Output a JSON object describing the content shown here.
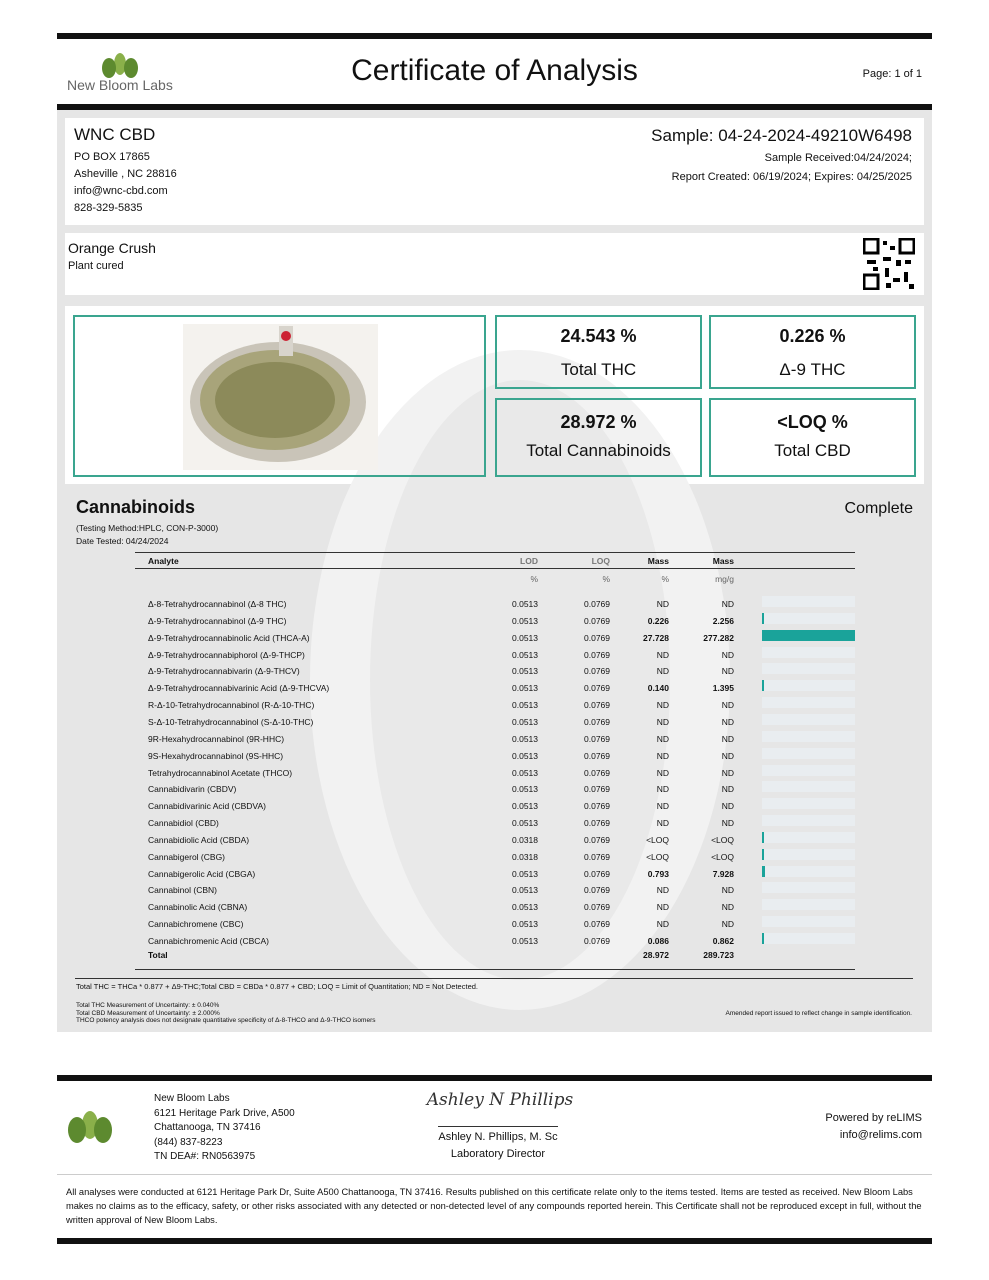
{
  "header": {
    "lab_name": "New Bloom Labs",
    "title": "Certificate of Analysis",
    "page": "Page: 1 of 1"
  },
  "client": {
    "name": "WNC CBD",
    "lines": [
      "PO BOX 17865",
      "Asheville , NC 28816",
      "info@wnc-cbd.com",
      "828-329-5835"
    ]
  },
  "sample": {
    "id": "Sample: 04-24-2024-49210W6498",
    "received": "Sample Received:04/24/2024;",
    "report": "Report Created: 06/19/2024; Expires: 04/25/2025"
  },
  "product": {
    "name": "Orange Crush",
    "type": "Plant cured"
  },
  "summary": [
    {
      "value": "24.543 %",
      "label": "Total THC"
    },
    {
      "value": "0.226 %",
      "label": "Δ-9 THC"
    },
    {
      "value": "28.972 %",
      "label": "Total Cannabinoids"
    },
    {
      "value": "<LOQ %",
      "label": "Total CBD"
    }
  ],
  "cannabinoids": {
    "title": "Cannabinoids",
    "status": "Complete",
    "method": "(Testing Method:HPLC, CON-P-3000)",
    "date": "Date Tested: 04/24/2024",
    "columns": [
      "Analyte",
      "LOD",
      "LOQ",
      "Mass",
      "Mass"
    ],
    "units": [
      "%",
      "%",
      "%",
      "mg/g"
    ],
    "rows": [
      [
        "Δ-8-Tetrahydrocannabinol (Δ-8 THC)",
        "0.0513",
        "0.0769",
        "ND",
        "ND"
      ],
      [
        "Δ-9-Tetrahydrocannabinol (Δ-9 THC)",
        "0.0513",
        "0.0769",
        "0.226",
        "2.256"
      ],
      [
        "Δ-9-Tetrahydrocannabinolic Acid (THCA-A)",
        "0.0513",
        "0.0769",
        "27.728",
        "277.282"
      ],
      [
        "Δ-9-Tetrahydrocannabiphorol (Δ-9-THCP)",
        "0.0513",
        "0.0769",
        "ND",
        "ND"
      ],
      [
        "Δ-9-Tetrahydrocannabivarin (Δ-9-THCV)",
        "0.0513",
        "0.0769",
        "ND",
        "ND"
      ],
      [
        "Δ-9-Tetrahydrocannabivarinic Acid (Δ-9-THCVA)",
        "0.0513",
        "0.0769",
        "0.140",
        "1.395"
      ],
      [
        "R-Δ-10-Tetrahydrocannabinol (R-Δ-10-THC)",
        "0.0513",
        "0.0769",
        "ND",
        "ND"
      ],
      [
        "S-Δ-10-Tetrahydrocannabinol (S-Δ-10-THC)",
        "0.0513",
        "0.0769",
        "ND",
        "ND"
      ],
      [
        "9R-Hexahydrocannabinol (9R-HHC)",
        "0.0513",
        "0.0769",
        "ND",
        "ND"
      ],
      [
        "9S-Hexahydrocannabinol (9S-HHC)",
        "0.0513",
        "0.0769",
        "ND",
        "ND"
      ],
      [
        "Tetrahydrocannabinol Acetate (THCO)",
        "0.0513",
        "0.0769",
        "ND",
        "ND"
      ],
      [
        "Cannabidivarin (CBDV)",
        "0.0513",
        "0.0769",
        "ND",
        "ND"
      ],
      [
        "Cannabidivarinic Acid (CBDVA)",
        "0.0513",
        "0.0769",
        "ND",
        "ND"
      ],
      [
        "Cannabidiol (CBD)",
        "0.0513",
        "0.0769",
        "ND",
        "ND"
      ],
      [
        "Cannabidiolic Acid (CBDA)",
        "0.0318",
        "0.0769",
        "<LOQ",
        "<LOQ"
      ],
      [
        "Cannabigerol (CBG)",
        "0.0318",
        "0.0769",
        "<LOQ",
        "<LOQ"
      ],
      [
        "Cannabigerolic Acid (CBGA)",
        "0.0513",
        "0.0769",
        "0.793",
        "7.928"
      ],
      [
        "Cannabinol (CBN)",
        "0.0513",
        "0.0769",
        "ND",
        "ND"
      ],
      [
        "Cannabinolic Acid (CBNA)",
        "0.0513",
        "0.0769",
        "ND",
        "ND"
      ],
      [
        "Cannabichromene (CBC)",
        "0.0513",
        "0.0769",
        "ND",
        "ND"
      ],
      [
        "Cannabichromenic Acid (CBCA)",
        "0.0513",
        "0.0769",
        "0.086",
        "0.862"
      ]
    ],
    "total": {
      "label": "Total",
      "pct": "28.972",
      "mg": "289.723"
    }
  },
  "notes": {
    "formula": "Total THC = THCa * 0.877 + Δ9-THC;Total CBD = CBDa * 0.877 + CBD; LOQ = Limit of Quantitation; ND = Not Detected.",
    "uncertainty": [
      "Total THC Measurement of Uncertainty: ± 0.040%",
      "Total CBD Measurement of Uncertainty: ± 2.000%",
      "THCO potency analysis does not designate quantitative specificity of Δ-8-THCO and Δ-9-THCO isomers"
    ],
    "amended": "Amended report issued to reflect change in sample identification."
  },
  "footer": {
    "lab": [
      "New Bloom Labs",
      "6121 Heritage Park Drive, A500",
      "Chattanooga, TN 37416",
      "(844) 837-8223",
      "TN DEA#: RN0563975"
    ],
    "signature": "Ashley N Phillips",
    "director": "Ashley N. Phillips, M. Sc",
    "director_title": "Laboratory Director",
    "powered": "Powered by reLIMS",
    "email": "info@relims.com",
    "disclaimer": "All analyses were conducted at 6121 Heritage Park Dr, Suite A500 Chattanooga, TN 37416. Results published on this certificate relate only to the items tested. Items are tested as received. New Bloom Labs makes no claims as to the efficacy, safety, or other risks associated with any detected or non-detected level of any compounds reported herein. This Certificate shall not be reproduced except in full, without the written approval of New Bloom Labs."
  }
}
